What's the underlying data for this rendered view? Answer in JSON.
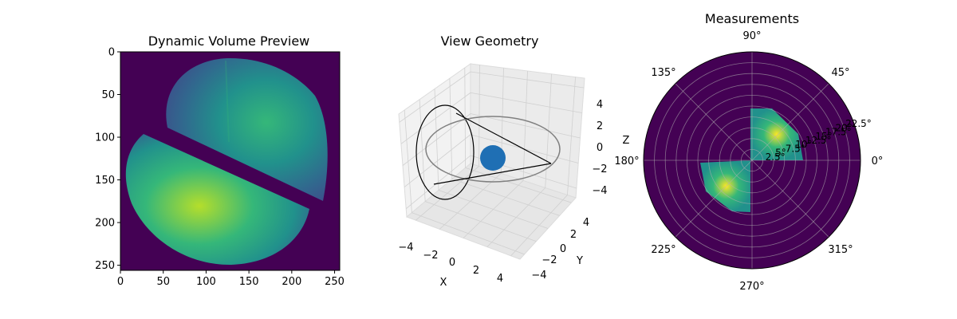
{
  "chart_data": [
    {
      "type": "heatmap",
      "title": "Dynamic Volume Preview",
      "xlim": [
        0,
        256
      ],
      "ylim": [
        256,
        0
      ],
      "xticks": [
        "0",
        "50",
        "100",
        "150",
        "200",
        "250"
      ],
      "yticks": [
        "0",
        "50",
        "100",
        "150",
        "200",
        "250"
      ],
      "colormap": "viridis",
      "background_color": "#440154"
    },
    {
      "type": "3d-line",
      "title": "View Geometry",
      "xlabel": "X",
      "ylabel": "Y",
      "zlabel": "Z",
      "xlim": [
        -5,
        5
      ],
      "ylim": [
        -5,
        5
      ],
      "zlim": [
        -5,
        5
      ],
      "xticks": [
        "−4",
        "−2",
        "0",
        "2",
        "4"
      ],
      "yticks": [
        "−4",
        "−2",
        "0",
        "2",
        "4"
      ],
      "zticks": [
        "−4",
        "−2",
        "0",
        "2",
        "4"
      ],
      "sphere_color": "#1f6fb4"
    },
    {
      "type": "polar-heatmap",
      "title": "Measurements",
      "theta_ticks": [
        "0°",
        "45°",
        "90°",
        "135°",
        "180°",
        "225°",
        "270°",
        "315°"
      ],
      "r_ticks": [
        "2.5°",
        "5°",
        "7.5°",
        "10°",
        "12.5°",
        "15°",
        "17.5°",
        "20°",
        "22.5°"
      ],
      "rmax": 25,
      "background_color": "#440154"
    }
  ]
}
